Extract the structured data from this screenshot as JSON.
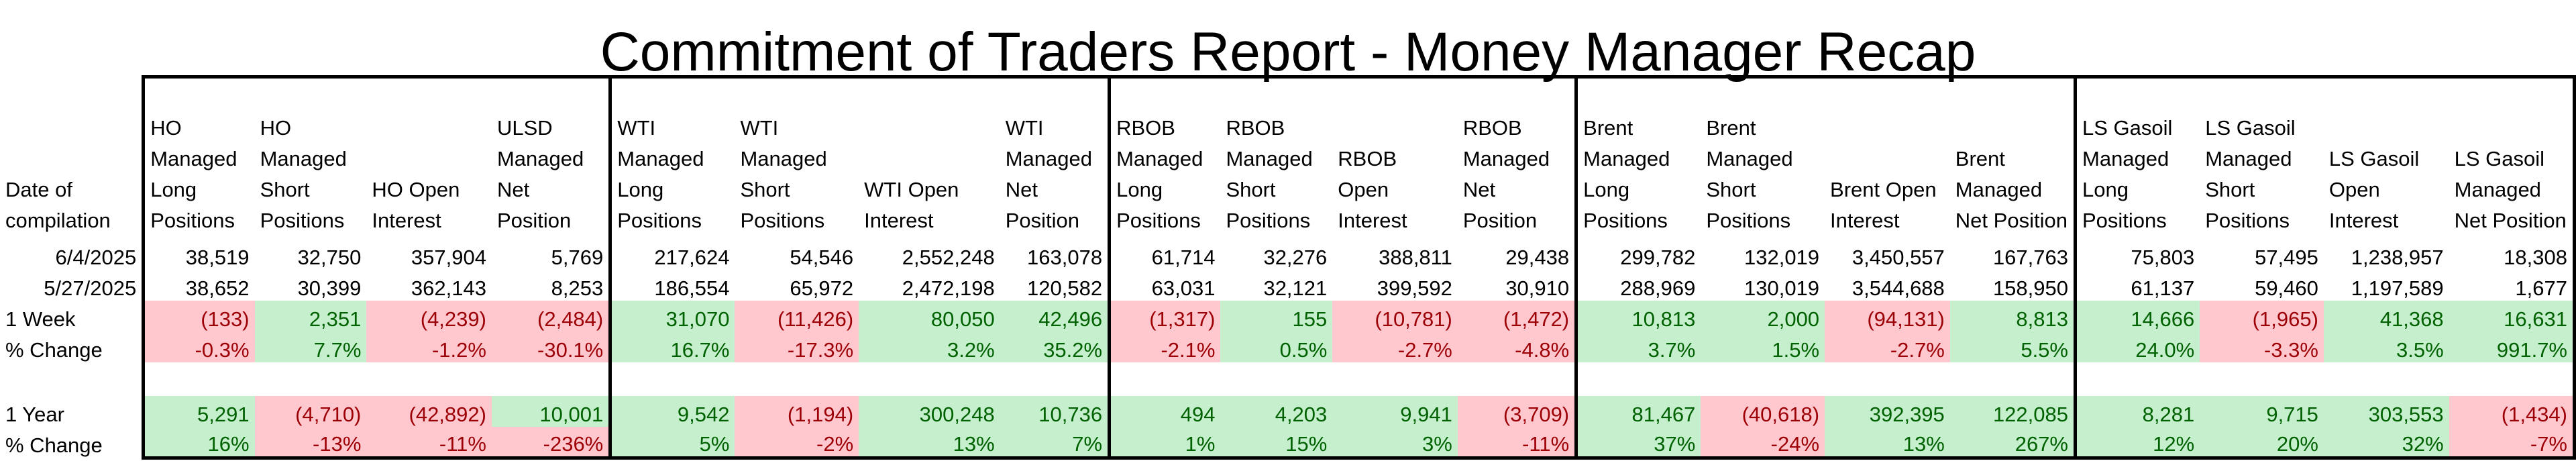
{
  "title": "Commitment of Traders Report - Money Manager Recap",
  "row_label_header": "Date of compilation",
  "columns": [
    "HO Managed Long Positions",
    "HO Managed Short Positions",
    "HO Open Interest",
    "ULSD Managed Net Position",
    "WTI Managed Long Positions",
    "WTI Managed Short Positions",
    "WTI Open Interest",
    "WTI Managed Net Position",
    "RBOB Managed Long Positions",
    "RBOB Managed Short Positions",
    "RBOB Open Interest",
    "RBOB Managed Net Position",
    "Brent Managed Long Positions",
    "Brent Managed Short Positions",
    "Brent Open Interest",
    "Brent Managed Net Position",
    "LS Gasoil Managed Long Positions",
    "LS Gasoil Managed Short Positions",
    "LS Gasoil Open Interest",
    "LS Gasoil Managed Net Position"
  ],
  "rows": [
    {
      "label": "6/4/2025",
      "values": [
        "38,519",
        "32,750",
        "357,904",
        "5,769",
        "217,624",
        "54,546",
        "2,552,248",
        "163,078",
        "61,714",
        "32,276",
        "388,811",
        "29,438",
        "299,782",
        "132,019",
        "3,450,557",
        "167,763",
        "75,803",
        "57,495",
        "1,238,957",
        "18,308"
      ]
    },
    {
      "label": "5/27/2025",
      "values": [
        "38,652",
        "30,399",
        "362,143",
        "8,253",
        "186,554",
        "65,972",
        "2,472,198",
        "120,582",
        "63,031",
        "32,121",
        "399,592",
        "30,910",
        "288,969",
        "130,019",
        "3,544,688",
        "158,950",
        "61,137",
        "59,460",
        "1,197,589",
        "1,677"
      ]
    },
    {
      "label": "1 Week",
      "values": [
        "(133)",
        "2,351",
        "(4,239)",
        "(2,484)",
        "31,070",
        "(11,426)",
        "80,050",
        "42,496",
        "(1,317)",
        "155",
        "(10,781)",
        "(1,472)",
        "10,813",
        "2,000",
        "(94,131)",
        "8,813",
        "14,666",
        "(1,965)",
        "41,368",
        "16,631"
      ]
    },
    {
      "label": "% Change",
      "values": [
        "-0.3%",
        "7.7%",
        "-1.2%",
        "-30.1%",
        "16.7%",
        "-17.3%",
        "3.2%",
        "35.2%",
        "-2.1%",
        "0.5%",
        "-2.7%",
        "-4.8%",
        "3.7%",
        "1.5%",
        "-2.7%",
        "5.5%",
        "24.0%",
        "-3.3%",
        "3.5%",
        "991.7%"
      ]
    },
    {
      "label": "1 Year",
      "values": [
        "5,291",
        "(4,710)",
        "(42,892)",
        "10,001",
        "9,542",
        "(1,194)",
        "300,248",
        "10,736",
        "494",
        "4,203",
        "9,941",
        "(3,709)",
        "81,467",
        "(40,618)",
        "392,395",
        "122,085",
        "8,281",
        "9,715",
        "303,553",
        "(1,434)"
      ]
    },
    {
      "label": "% Change",
      "values": [
        "16%",
        "-13%",
        "-11%",
        "-236%",
        "5%",
        "-2%",
        "13%",
        "7%",
        "1%",
        "15%",
        "3%",
        "-11%",
        "37%",
        "-24%",
        "13%",
        "267%",
        "12%",
        "20%",
        "32%",
        "-7%"
      ]
    }
  ],
  "colors": {
    "positive_fill": "#c6efce",
    "positive_text": "#006100",
    "negative_fill": "#ffc7ce",
    "negative_text": "#9c0006"
  }
}
